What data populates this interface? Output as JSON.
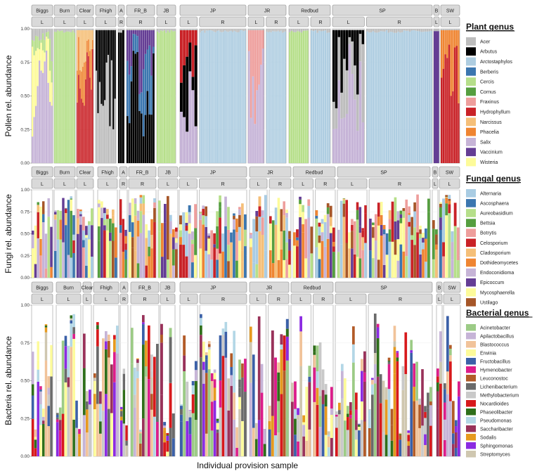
{
  "chart_data": {
    "type": "stacked-bar-faceted",
    "xlabel": "Individual provision sample",
    "sites": [
      "Biggs",
      "Burn",
      "Clear",
      "Fhigh",
      "A",
      "FR_B",
      "JB",
      "JP",
      "JR",
      "Redbud",
      "SP",
      "B",
      "SW"
    ],
    "facets": [
      {
        "site": "Biggs",
        "sub": "L",
        "panels": {
          "pollen": 0,
          "fungi": 0,
          "bacteria": 0
        }
      },
      {
        "site": "Burn",
        "sub": "L"
      },
      {
        "site": "Clear",
        "sub": "L"
      },
      {
        "site": "Fhigh",
        "sub": "L"
      },
      {
        "site": "A",
        "sub": "R"
      },
      {
        "site": "FR_B",
        "sub": "R"
      },
      {
        "site": "JB",
        "sub": "L"
      },
      {
        "site": "JP",
        "sub": "L"
      },
      {
        "site": "JP",
        "sub": "R"
      },
      {
        "site": "JR",
        "sub": "L"
      },
      {
        "site": "JR",
        "sub": "R"
      },
      {
        "site": "Redbud",
        "sub": "L"
      },
      {
        "site": "Redbud",
        "sub": "R"
      },
      {
        "site": "SP",
        "sub": "L"
      },
      {
        "site": "SP",
        "sub": "R"
      },
      {
        "site": "B",
        "sub": "L"
      },
      {
        "site": "SW",
        "sub": "L"
      }
    ],
    "panels": [
      {
        "name": "pollen",
        "ylabel": "Pollen rel. abundance",
        "ylim": [
          0,
          1
        ],
        "yticks": [
          "0.00",
          "0.25",
          "0.50",
          "0.75",
          "1.00"
        ],
        "legend_title": "Plant genus",
        "legend": [
          {
            "name": "Acer",
            "color": "#bdbdbd"
          },
          {
            "name": "Arbutus",
            "color": "#000000"
          },
          {
            "name": "Arctostaphylos",
            "color": "#aecde1"
          },
          {
            "name": "Berberis",
            "color": "#3b76af"
          },
          {
            "name": "Cercis",
            "color": "#b6df8a"
          },
          {
            "name": "Cornus",
            "color": "#559e3f"
          },
          {
            "name": "Fraxinus",
            "color": "#ee9e9c"
          },
          {
            "name": "Hydrophyllum",
            "color": "#c92227"
          },
          {
            "name": "Narcissus",
            "color": "#f5bf78"
          },
          {
            "name": "Phacelia",
            "color": "#ef8532"
          },
          {
            "name": "Salix",
            "color": "#c6b4d7"
          },
          {
            "name": "Vaccinium",
            "color": "#643d94"
          },
          {
            "name": "Wisteria",
            "color": "#fdfb9a"
          }
        ],
        "facet_composition": [
          {
            "facet": "Biggs-L",
            "dominant": [
              "Salix",
              "Wisteria",
              "Cercis",
              "Acer"
            ],
            "n": 12
          },
          {
            "facet": "Burn-L",
            "dominant": [
              "Cercis"
            ],
            "n": 14
          },
          {
            "facet": "Clear-L",
            "dominant": [
              "Hydrophyllum",
              "Phacelia",
              "Narcissus"
            ],
            "n": 12
          },
          {
            "facet": "Fhigh-L",
            "dominant": [
              "Acer",
              "Arbutus"
            ],
            "n": 12
          },
          {
            "facet": "A-R",
            "dominant": [
              "Arbutus"
            ],
            "n": 3
          },
          {
            "facet": "FR_B-R",
            "dominant": [
              "Arbutus",
              "Berberis",
              "Vaccinium"
            ],
            "n": 14
          },
          {
            "facet": "JB-L",
            "dominant": [
              "Cercis"
            ],
            "n": 11
          },
          {
            "facet": "JP-L",
            "dominant": [
              "Salix",
              "Arbutus",
              "Hydrophyllum"
            ],
            "n": 6
          },
          {
            "facet": "JP-R",
            "dominant": [
              "Arctostaphylos"
            ],
            "n": 30
          },
          {
            "facet": "JR-L",
            "dominant": [
              "Salix",
              "Fraxinus"
            ],
            "n": 8
          },
          {
            "facet": "JR-R",
            "dominant": [
              "Arctostaphylos"
            ],
            "n": 14
          },
          {
            "facet": "Redbud-L",
            "dominant": [
              "Cercis"
            ],
            "n": 10
          },
          {
            "facet": "Redbud-R",
            "dominant": [
              "Arctostaphylos"
            ],
            "n": 10
          },
          {
            "facet": "SP-L",
            "dominant": [
              "Salix",
              "Acer",
              "Arbutus"
            ],
            "n": 12
          },
          {
            "facet": "SP-R",
            "dominant": [
              "Arctostaphylos"
            ],
            "n": 34
          },
          {
            "facet": "B-L",
            "dominant": [
              "Vaccinium"
            ],
            "n": 1
          },
          {
            "facet": "SW-L",
            "dominant": [
              "Hydrophyllum",
              "Phacelia"
            ],
            "n": 10
          }
        ]
      },
      {
        "name": "fungi",
        "ylabel": "Fungi rel. abundance",
        "ylim": [
          0,
          1
        ],
        "yticks": [
          "0.00",
          "0.25",
          "0.50",
          "0.75",
          "1.00"
        ],
        "legend_title": "Fungal genus",
        "legend": [
          {
            "name": "Alternaria",
            "color": "#a9cce3"
          },
          {
            "name": "Ascosphaera",
            "color": "#3b76af"
          },
          {
            "name": "Aureobasidium",
            "color": "#b6df8a"
          },
          {
            "name": "Bettsia",
            "color": "#559e3f"
          },
          {
            "name": "Botrytis",
            "color": "#ee9e9c"
          },
          {
            "name": "Celosporium",
            "color": "#c92227"
          },
          {
            "name": "Cladosporium",
            "color": "#f5bf78"
          },
          {
            "name": "Dothideomycetes",
            "color": "#ef8532"
          },
          {
            "name": "Endoconidioma",
            "color": "#c6b4d7"
          },
          {
            "name": "Epicoccum",
            "color": "#643d94"
          },
          {
            "name": "Mycosphaerella",
            "color": "#fdfb9a"
          },
          {
            "name": "Ustilago",
            "color": "#a65628"
          }
        ]
      },
      {
        "name": "bacteria",
        "ylabel": "Bacteria rel. abundance",
        "ylim": [
          0,
          1
        ],
        "yticks": [
          "0.00",
          "0.25",
          "0.50",
          "0.75",
          "1.00"
        ],
        "legend_title": "Bacterial genus",
        "legend": [
          {
            "name": "Acinetobacter",
            "color": "#9ccb86"
          },
          {
            "name": "Apilactobacillus",
            "color": "#c6b4d7"
          },
          {
            "name": "Blastococcus",
            "color": "#f1c39a"
          },
          {
            "name": "Erwinia",
            "color": "#fdfb9a"
          },
          {
            "name": "Fructobacillus",
            "color": "#3b60a8"
          },
          {
            "name": "Hymenobacter",
            "color": "#dc1d8a"
          },
          {
            "name": "Leuconostoc",
            "color": "#b25b28"
          },
          {
            "name": "Lichenibacterium",
            "color": "#6a6a6a"
          },
          {
            "name": "Methylobacterium",
            "color": "#c9c9c9"
          },
          {
            "name": "Nocardioides",
            "color": "#d7191c"
          },
          {
            "name": "Phaseolibacter",
            "color": "#2f6f1a"
          },
          {
            "name": "Pseudomonas",
            "color": "#b3d7e6"
          },
          {
            "name": "Saccharibacter",
            "color": "#99325a"
          },
          {
            "name": "Sodalis",
            "color": "#e69a1f"
          },
          {
            "name": "Sphingomonas",
            "color": "#8b2be2"
          },
          {
            "name": "Streptomyces",
            "color": "#cfc7b0"
          }
        ]
      }
    ]
  }
}
